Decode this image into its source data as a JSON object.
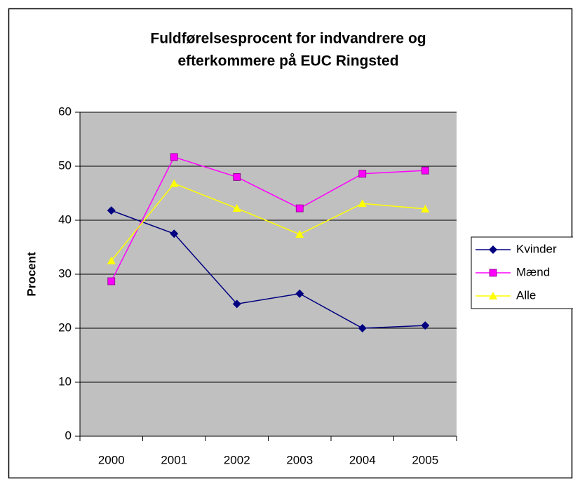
{
  "chart_data": {
    "type": "line",
    "title": [
      "Fuldførelsesprocent for indvandrere og",
      "efterkommere på EUC Ringsted"
    ],
    "y_label": "Procent",
    "categories": [
      "2000",
      "2001",
      "2002",
      "2003",
      "2004",
      "2005"
    ],
    "series": [
      {
        "name": "Kvinder",
        "color": "#000080",
        "marker": "diamond",
        "values": [
          41.8,
          37.5,
          24.5,
          26.4,
          20.0,
          20.5
        ]
      },
      {
        "name": "Mænd",
        "color": "#ff00ff",
        "marker": "square",
        "values": [
          28.7,
          51.7,
          48.0,
          42.2,
          48.6,
          49.2
        ]
      },
      {
        "name": "Alle",
        "color": "#ffff00",
        "marker": "triangle",
        "values": [
          32.5,
          46.8,
          42.2,
          37.4,
          43.1,
          42.1
        ]
      }
    ],
    "ylim": [
      0,
      60
    ],
    "yticks": [
      0,
      10,
      20,
      30,
      40,
      50,
      60
    ],
    "grid": true,
    "legend": "right"
  }
}
